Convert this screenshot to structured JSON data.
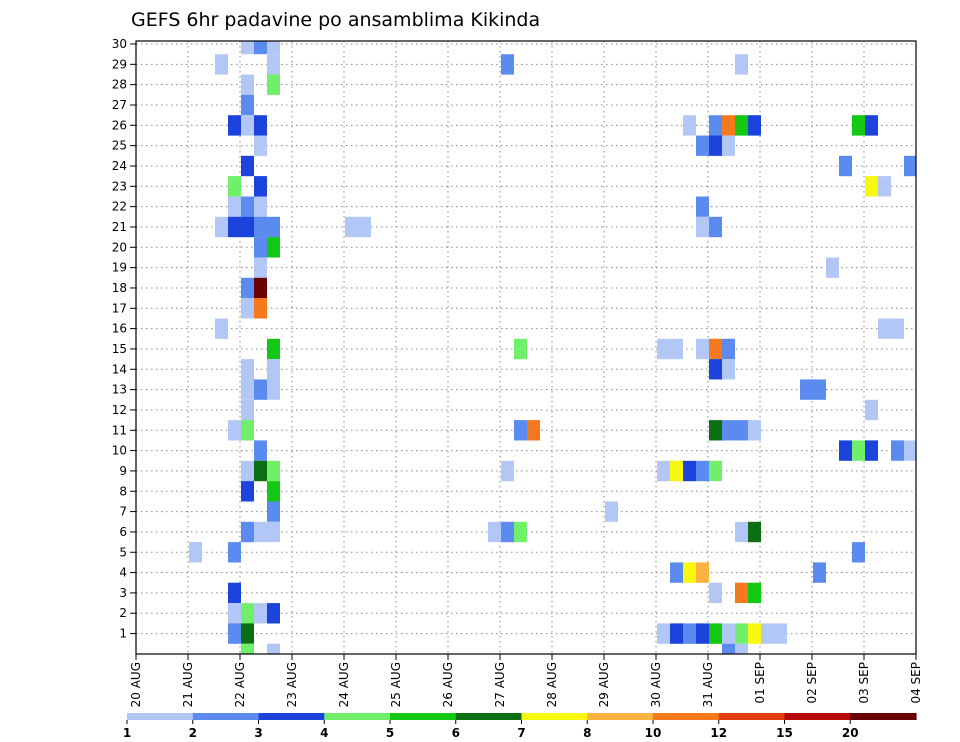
{
  "chart_data": {
    "type": "heatmap",
    "title": "GEFS 6hr padavine po ansamblima Kikinda",
    "y_ticks": [
      "1",
      "2",
      "3",
      "4",
      "5",
      "6",
      "7",
      "8",
      "9",
      "10",
      "11",
      "12",
      "13",
      "14",
      "15",
      "16",
      "17",
      "18",
      "19",
      "20",
      "21",
      "22",
      "23",
      "24",
      "25",
      "26",
      "27",
      "28",
      "29",
      "30"
    ],
    "ylim": [
      0,
      30
    ],
    "x_ticks": [
      "20 AUG",
      "21 AUG",
      "22 AUG",
      "23 AUG",
      "24 AUG",
      "25 AUG",
      "26 AUG",
      "27 AUG",
      "28 AUG",
      "29 AUG",
      "30 AUG",
      "31 AUG",
      "01 SEP",
      "02 SEP",
      "03 SEP",
      "04 SEP"
    ],
    "x_unit": "6h steps from 20 AUG 00Z",
    "xlim": [
      0,
      60
    ],
    "grid": true,
    "legend": {
      "placement": "bottom",
      "labels": [
        "1",
        "2",
        "3",
        "4",
        "5",
        "6",
        "7",
        "8",
        "10",
        "12",
        "15",
        "20"
      ],
      "colors": [
        "#b3c7f7",
        "#5c8bef",
        "#1c44dd",
        "#70f06a",
        "#12c812",
        "#0d6f13",
        "#f7f710",
        "#f9b33e",
        "#f6791d",
        "#e23c0e",
        "#b40b08",
        "#6a0306"
      ]
    },
    "cells": [
      [
        8,
        30,
        1
      ],
      [
        9,
        30,
        2
      ],
      [
        10,
        30,
        1
      ],
      [
        6,
        29,
        1
      ],
      [
        10,
        29,
        1
      ],
      [
        28,
        29,
        2
      ],
      [
        46,
        29,
        1
      ],
      [
        8,
        28,
        1
      ],
      [
        10,
        28,
        4
      ],
      [
        8,
        27,
        2
      ],
      [
        7,
        26,
        3
      ],
      [
        8,
        26,
        1
      ],
      [
        9,
        26,
        3
      ],
      [
        42,
        26,
        1
      ],
      [
        44,
        26,
        2
      ],
      [
        45,
        26,
        10
      ],
      [
        46,
        26,
        5
      ],
      [
        47,
        26,
        3
      ],
      [
        55,
        26,
        5
      ],
      [
        56,
        26,
        3
      ],
      [
        9,
        25,
        1
      ],
      [
        43,
        25,
        2
      ],
      [
        44,
        25,
        3
      ],
      [
        45,
        25,
        1
      ],
      [
        8,
        24,
        3
      ],
      [
        54,
        24,
        2
      ],
      [
        59,
        24,
        2
      ],
      [
        7,
        23,
        4
      ],
      [
        9,
        23,
        3
      ],
      [
        56,
        23,
        7
      ],
      [
        57,
        23,
        1
      ],
      [
        7,
        22,
        1
      ],
      [
        8,
        22,
        2
      ],
      [
        9,
        22,
        1
      ],
      [
        43,
        22,
        2
      ],
      [
        6,
        21,
        1
      ],
      [
        7,
        21,
        3
      ],
      [
        8,
        21,
        3
      ],
      [
        9,
        21,
        2
      ],
      [
        10,
        21,
        2
      ],
      [
        16,
        21,
        1
      ],
      [
        17,
        21,
        1
      ],
      [
        43,
        21,
        1
      ],
      [
        44,
        21,
        2
      ],
      [
        9,
        20,
        2
      ],
      [
        10,
        20,
        5
      ],
      [
        9,
        19,
        1
      ],
      [
        53,
        19,
        1
      ],
      [
        8,
        18,
        2
      ],
      [
        9,
        18,
        20
      ],
      [
        8,
        17,
        1
      ],
      [
        9,
        17,
        10
      ],
      [
        6,
        16,
        1
      ],
      [
        57,
        16,
        1
      ],
      [
        58,
        16,
        1
      ],
      [
        10,
        15,
        5
      ],
      [
        29,
        15,
        4
      ],
      [
        40,
        15,
        1
      ],
      [
        41,
        15,
        1
      ],
      [
        43,
        15,
        1
      ],
      [
        44,
        15,
        10
      ],
      [
        45,
        15,
        2
      ],
      [
        8,
        14,
        1
      ],
      [
        10,
        14,
        1
      ],
      [
        44,
        14,
        3
      ],
      [
        45,
        14,
        1
      ],
      [
        8,
        13,
        1
      ],
      [
        9,
        13,
        2
      ],
      [
        10,
        13,
        1
      ],
      [
        51,
        13,
        2
      ],
      [
        52,
        13,
        2
      ],
      [
        8,
        12,
        1
      ],
      [
        56,
        12,
        1
      ],
      [
        7,
        11,
        1
      ],
      [
        8,
        11,
        4
      ],
      [
        29,
        11,
        2
      ],
      [
        30,
        11,
        10
      ],
      [
        44,
        11,
        6
      ],
      [
        45,
        11,
        2
      ],
      [
        46,
        11,
        2
      ],
      [
        47,
        11,
        1
      ],
      [
        9,
        10,
        2
      ],
      [
        54,
        10,
        3
      ],
      [
        55,
        10,
        4
      ],
      [
        56,
        10,
        3
      ],
      [
        58,
        10,
        2
      ],
      [
        59,
        10,
        1
      ],
      [
        8,
        9,
        1
      ],
      [
        9,
        9,
        6
      ],
      [
        10,
        9,
        4
      ],
      [
        28,
        9,
        1
      ],
      [
        40,
        9,
        1
      ],
      [
        41,
        9,
        7
      ],
      [
        42,
        9,
        3
      ],
      [
        43,
        9,
        2
      ],
      [
        44,
        9,
        4
      ],
      [
        8,
        8,
        3
      ],
      [
        10,
        8,
        5
      ],
      [
        10,
        7,
        2
      ],
      [
        36,
        7,
        1
      ],
      [
        60,
        7,
        1
      ],
      [
        8,
        6,
        2
      ],
      [
        9,
        6,
        1
      ],
      [
        10,
        6,
        1
      ],
      [
        27,
        6,
        1
      ],
      [
        28,
        6,
        2
      ],
      [
        29,
        6,
        4
      ],
      [
        46,
        6,
        1
      ],
      [
        47,
        6,
        6
      ],
      [
        4,
        5,
        1
      ],
      [
        7,
        5,
        2
      ],
      [
        55,
        5,
        2
      ],
      [
        41,
        4,
        2
      ],
      [
        42,
        4,
        7
      ],
      [
        43,
        4,
        8
      ],
      [
        52,
        4,
        2
      ],
      [
        7,
        3,
        3
      ],
      [
        44,
        3,
        1
      ],
      [
        46,
        3,
        10
      ],
      [
        47,
        3,
        5
      ],
      [
        7,
        2,
        1
      ],
      [
        8,
        2,
        4
      ],
      [
        9,
        2,
        1
      ],
      [
        10,
        2,
        3
      ],
      [
        7,
        1,
        2
      ],
      [
        8,
        1,
        6
      ],
      [
        40,
        1,
        1
      ],
      [
        41,
        1,
        3
      ],
      [
        42,
        1,
        2
      ],
      [
        43,
        1,
        3
      ],
      [
        44,
        1,
        5
      ],
      [
        45,
        1,
        1
      ],
      [
        46,
        1,
        4
      ],
      [
        47,
        1,
        7
      ],
      [
        48,
        1,
        1
      ],
      [
        49,
        1,
        1
      ],
      [
        8,
        0,
        4
      ],
      [
        10,
        0,
        1
      ],
      [
        45,
        0,
        2
      ],
      [
        46,
        0,
        1
      ],
      [
        8,
        -1,
        4
      ],
      [
        55,
        -1,
        3
      ],
      [
        56,
        -1,
        3
      ]
    ]
  }
}
